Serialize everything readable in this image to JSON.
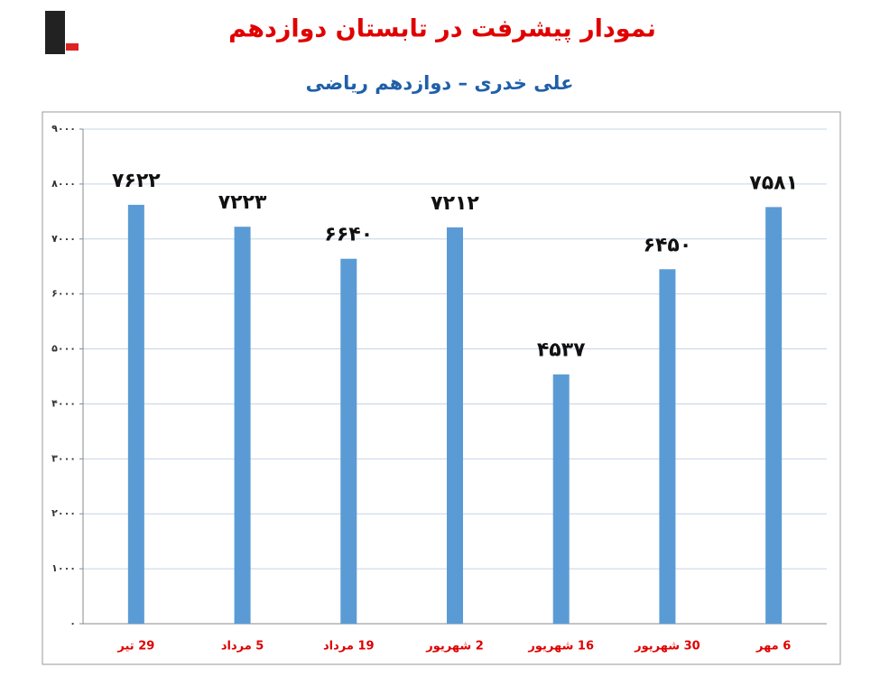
{
  "chart_data": {
    "type": "bar",
    "title": "نمودار پیشرفت در تابستان دوازدهم",
    "subtitle": "علی خدری – دوازدهم ریاضی",
    "categories": [
      "29 تیر",
      "5 مرداد",
      "19 مرداد",
      "2 شهریور",
      "16 شهریور",
      "30 شهریور",
      "6 مهر"
    ],
    "values": [
      7622,
      7223,
      6640,
      7212,
      4537,
      6450,
      7581
    ],
    "value_labels": [
      "۷۶۲۲",
      "۷۲۲۳",
      "۶۶۴۰",
      "۷۲۱۲",
      "۴۵۳۷",
      "۶۴۵۰",
      "۷۵۸۱"
    ],
    "color": "#5b9bd5",
    "ylim": [
      0,
      9000
    ],
    "yticks": [
      {
        "value": 0,
        "label": "۰"
      },
      {
        "value": 1000,
        "label": "۱۰۰۰"
      },
      {
        "value": 2000,
        "label": "۲۰۰۰"
      },
      {
        "value": 3000,
        "label": "۳۰۰۰"
      },
      {
        "value": 4000,
        "label": "۴۰۰۰"
      },
      {
        "value": 5000,
        "label": "۵۰۰۰"
      },
      {
        "value": 6000,
        "label": "۶۰۰۰"
      },
      {
        "value": 7000,
        "label": "۷۰۰۰"
      },
      {
        "value": 8000,
        "label": "۸۰۰۰"
      },
      {
        "value": 9000,
        "label": "۹۰۰۰"
      }
    ],
    "grid": true
  }
}
